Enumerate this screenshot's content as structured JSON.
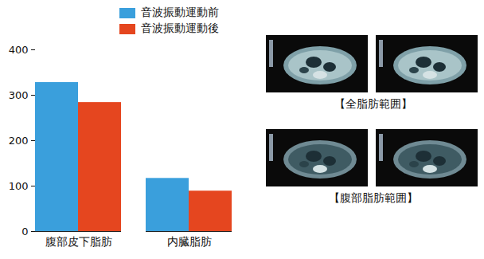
{
  "chart_data": {
    "type": "bar",
    "categories": [
      "腹部皮下脂肪",
      "内臓脂肪"
    ],
    "series": [
      {
        "name": "音波振動運動前",
        "color": "#3a9fdc",
        "values": [
          328,
          117
        ]
      },
      {
        "name": "音波振動運動後",
        "color": "#e5461f",
        "values": [
          284,
          89
        ]
      }
    ],
    "ylim": [
      0,
      400
    ],
    "yticks": [
      0,
      100,
      200,
      300,
      400
    ],
    "grid": false,
    "legend": "top",
    "annotations": [
      "【全脂肪範囲】",
      "【腹部脂肪範囲】"
    ]
  }
}
